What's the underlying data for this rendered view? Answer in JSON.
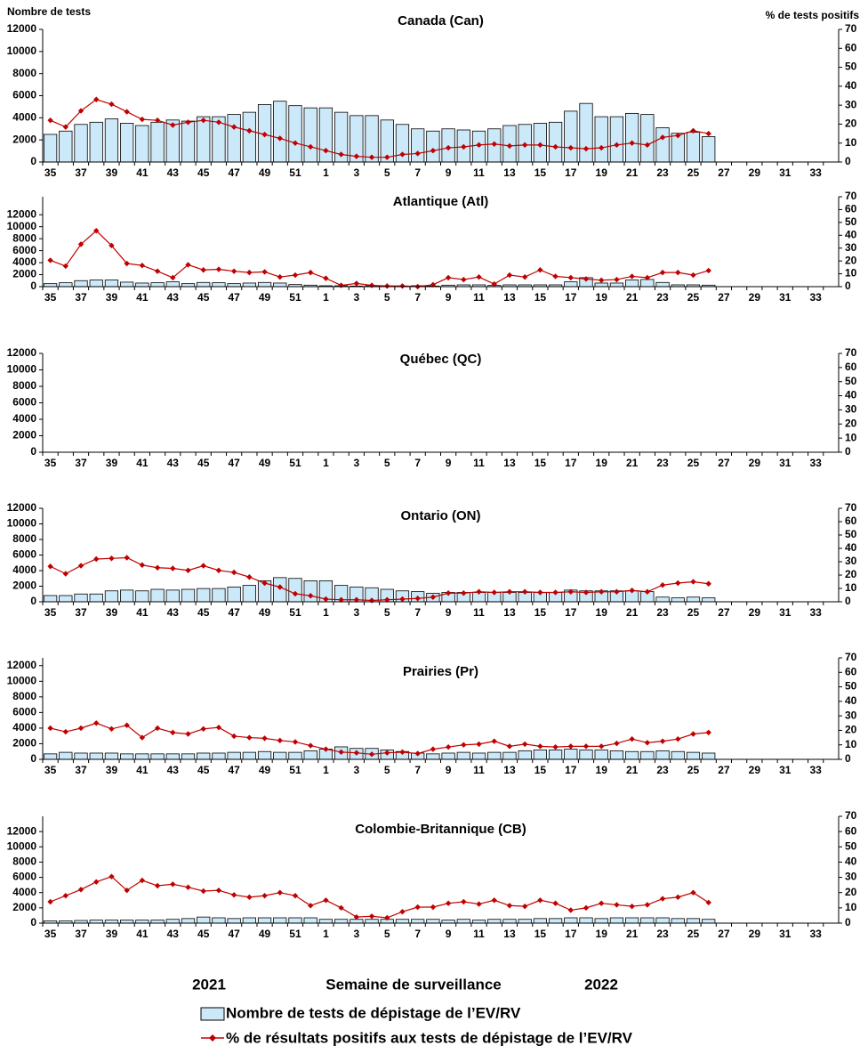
{
  "chart_data": [
    {
      "type": "bar-line",
      "title": "Canada (Can)",
      "y_label": "Nombre de tests",
      "y2_label": "% de tests positifs",
      "categories": [
        "35",
        null,
        "37",
        null,
        "39",
        null,
        "41",
        null,
        "43",
        null,
        "45",
        null,
        "47",
        null,
        "49",
        null,
        "51",
        null,
        "1",
        null,
        "3",
        null,
        "5",
        null,
        "7",
        null,
        "9",
        null,
        "11",
        null,
        "13",
        null,
        "15",
        null,
        "17",
        null,
        "19",
        null,
        "21",
        null,
        "23",
        null,
        "25",
        null,
        "27",
        null,
        "29",
        null,
        "31",
        null,
        "33",
        null
      ],
      "ylim": [
        0,
        12000
      ],
      "yticks": [
        0,
        2000,
        4000,
        6000,
        8000,
        10000,
        12000
      ],
      "y2lim": [
        0,
        70
      ],
      "y2ticks": [
        0,
        10,
        20,
        30,
        40,
        50,
        60,
        70
      ],
      "series": [
        {
          "name": "Nombre de tests de dépistage de l’EV/RV",
          "type": "bar",
          "color": "#cce9f9",
          "values": [
            2500,
            2800,
            3400,
            3600,
            3900,
            3500,
            3300,
            3600,
            3800,
            3700,
            4100,
            4100,
            4300,
            4500,
            5200,
            5500,
            5100,
            4900,
            4900,
            4500,
            4200,
            4200,
            3800,
            3400,
            3000,
            2800,
            3000,
            2900,
            2800,
            3000,
            3300,
            3400,
            3500,
            3600,
            4600,
            5300,
            4100,
            4100,
            4400,
            4300,
            3100,
            2600,
            2700,
            2300,
            null,
            null,
            null,
            null,
            null,
            null,
            null,
            null
          ]
        },
        {
          "name": "% de résultats positifs aux tests de dépistage de l’EV/RV",
          "type": "line",
          "axis": "y2",
          "color": "#c00000",
          "values": [
            22,
            18.5,
            27,
            33,
            30.5,
            26.5,
            22.5,
            22,
            19.5,
            21,
            22,
            21,
            18.5,
            16.5,
            14.5,
            12.5,
            10,
            8,
            6,
            4,
            3,
            2.5,
            2.5,
            4,
            4.5,
            6,
            7.5,
            8,
            9,
            9.5,
            8.5,
            9,
            9,
            8,
            7.5,
            7,
            7.5,
            9,
            10,
            9,
            13,
            14,
            16.5,
            15,
            null,
            null,
            null,
            null,
            null,
            null,
            null,
            null
          ]
        }
      ]
    },
    {
      "type": "bar-line",
      "title": "Atlantique (Atl)",
      "categories": [
        "35",
        null,
        "37",
        null,
        "39",
        null,
        "41",
        null,
        "43",
        null,
        "45",
        null,
        "47",
        null,
        "49",
        null,
        "51",
        null,
        "1",
        null,
        "3",
        null,
        "5",
        null,
        "7",
        null,
        "9",
        null,
        "11",
        null,
        "13",
        null,
        "15",
        null,
        "17",
        null,
        "19",
        null,
        "21",
        null,
        "23",
        null,
        "25",
        null,
        "27",
        null,
        "29",
        null,
        "31",
        null,
        "33",
        null
      ],
      "ylim": [
        0,
        15000
      ],
      "yticks": [
        0,
        2000,
        4000,
        6000,
        8000,
        10000,
        12000
      ],
      "y2lim": [
        0,
        70
      ],
      "y2ticks": [
        0,
        10,
        20,
        30,
        40,
        50,
        60,
        70
      ],
      "series": [
        {
          "type": "bar",
          "color": "#cce9f9",
          "values": [
            500,
            650,
            1000,
            1100,
            1100,
            750,
            600,
            650,
            800,
            500,
            700,
            650,
            500,
            600,
            700,
            600,
            350,
            250,
            150,
            150,
            100,
            150,
            100,
            100,
            150,
            100,
            250,
            300,
            300,
            200,
            300,
            300,
            300,
            300,
            800,
            1500,
            600,
            600,
            1100,
            1200,
            700,
            300,
            300,
            250,
            null,
            null,
            null,
            null,
            null,
            null,
            null,
            null
          ]
        },
        {
          "type": "line",
          "axis": "y2",
          "color": "#c00000",
          "values": [
            20.5,
            16,
            33,
            43.5,
            32,
            18,
            16.5,
            12,
            7,
            17,
            13,
            13.5,
            12,
            11,
            11.5,
            7.5,
            9,
            11,
            6.5,
            1,
            2.5,
            1,
            0.5,
            0.5,
            0,
            1.5,
            7,
            5.5,
            7.5,
            2,
            9,
            7.5,
            13,
            8,
            7,
            6,
            5,
            5.5,
            8,
            7,
            11,
            11,
            9,
            12.5,
            null,
            null,
            null,
            null,
            null,
            null,
            null,
            null
          ]
        }
      ]
    },
    {
      "type": "bar-line",
      "title": "Québec (QC)",
      "categories": [
        "35",
        null,
        "37",
        null,
        "39",
        null,
        "41",
        null,
        "43",
        null,
        "45",
        null,
        "47",
        null,
        "49",
        null,
        "51",
        null,
        "1",
        null,
        "3",
        null,
        "5",
        null,
        "7",
        null,
        "9",
        null,
        "11",
        null,
        "13",
        null,
        "15",
        null,
        "17",
        null,
        "19",
        null,
        "21",
        null,
        "23",
        null,
        "25",
        null,
        "27",
        null,
        "29",
        null,
        "31",
        null,
        "33",
        null
      ],
      "ylim": [
        0,
        12000
      ],
      "yticks": [
        0,
        2000,
        4000,
        6000,
        8000,
        10000,
        12000
      ],
      "y2lim": [
        0,
        70
      ],
      "y2ticks": [
        0,
        10,
        20,
        30,
        40,
        50,
        60,
        70
      ],
      "series": [
        {
          "type": "bar",
          "color": "#cce9f9",
          "values": [
            null,
            null,
            null,
            null,
            null,
            null,
            null,
            null,
            null,
            null,
            null,
            null,
            null,
            null,
            null,
            null,
            null,
            null,
            null,
            null,
            null,
            null,
            null,
            null,
            null,
            null,
            null,
            null,
            null,
            null,
            null,
            null,
            null,
            null,
            null,
            null,
            null,
            null,
            null,
            null,
            null,
            null,
            null,
            null,
            null,
            null,
            null,
            null,
            null,
            null,
            null,
            null
          ]
        },
        {
          "type": "line",
          "axis": "y2",
          "color": "#c00000",
          "values": [
            null,
            null,
            null,
            null,
            null,
            null,
            null,
            null,
            null,
            null,
            null,
            null,
            null,
            null,
            null,
            null,
            null,
            null,
            null,
            null,
            null,
            null,
            null,
            null,
            null,
            null,
            null,
            null,
            null,
            null,
            null,
            null,
            null,
            null,
            null,
            null,
            null,
            null,
            null,
            null,
            null,
            null,
            null,
            null,
            null,
            null,
            null,
            null,
            null,
            null,
            null,
            null
          ]
        }
      ]
    },
    {
      "type": "bar-line",
      "title": "Ontario (ON)",
      "categories": [
        "35",
        null,
        "37",
        null,
        "39",
        null,
        "41",
        null,
        "43",
        null,
        "45",
        null,
        "47",
        null,
        "49",
        null,
        "51",
        null,
        "1",
        null,
        "3",
        null,
        "5",
        null,
        "7",
        null,
        "9",
        null,
        "11",
        null,
        "13",
        null,
        "15",
        null,
        "17",
        null,
        "19",
        null,
        "21",
        null,
        "23",
        null,
        "25",
        null,
        "27",
        null,
        "29",
        null,
        "31",
        null,
        "33",
        null
      ],
      "ylim": [
        0,
        12000
      ],
      "yticks": [
        0,
        2000,
        4000,
        6000,
        8000,
        10000,
        12000
      ],
      "y2lim": [
        0,
        70
      ],
      "y2ticks": [
        0,
        10,
        20,
        30,
        40,
        50,
        60,
        70
      ],
      "series": [
        {
          "type": "bar",
          "color": "#cce9f9",
          "values": [
            800,
            800,
            1000,
            1000,
            1400,
            1500,
            1400,
            1600,
            1500,
            1600,
            1700,
            1700,
            1900,
            2100,
            2700,
            3100,
            3000,
            2700,
            2700,
            2100,
            1900,
            1800,
            1600,
            1400,
            1300,
            1100,
            1200,
            1200,
            1200,
            1200,
            1200,
            1200,
            1200,
            1200,
            1500,
            1400,
            1400,
            1400,
            1400,
            1300,
            600,
            500,
            600,
            500,
            null,
            null,
            null,
            null,
            null,
            null,
            null,
            null
          ]
        },
        {
          "type": "line",
          "axis": "y2",
          "color": "#c00000",
          "values": [
            26.5,
            21,
            27,
            32,
            32.5,
            33,
            27.5,
            25.5,
            25,
            23.5,
            27,
            23.5,
            22,
            18.5,
            14,
            11,
            6,
            4.5,
            2,
            1.5,
            1.5,
            1,
            1.5,
            2,
            2.5,
            3.5,
            6.5,
            6.5,
            7.5,
            7,
            7.5,
            7.5,
            7,
            7,
            7.5,
            7,
            7.5,
            7.5,
            8.5,
            7.5,
            12.5,
            14,
            15,
            13.5,
            null,
            null,
            null,
            null,
            null,
            null,
            null,
            null
          ]
        }
      ]
    },
    {
      "type": "bar-line",
      "title": "Prairies (Pr)",
      "categories": [
        "35",
        null,
        "37",
        null,
        "39",
        null,
        "41",
        null,
        "43",
        null,
        "45",
        null,
        "47",
        null,
        "49",
        null,
        "51",
        null,
        "1",
        null,
        "3",
        null,
        "5",
        null,
        "7",
        null,
        "9",
        null,
        "11",
        null,
        "13",
        null,
        "15",
        null,
        "17",
        null,
        "19",
        null,
        "21",
        null,
        "23",
        null,
        "25",
        null,
        "27",
        null,
        "29",
        null,
        "31",
        null,
        "33",
        null
      ],
      "ylim": [
        0,
        13000
      ],
      "yticks": [
        0,
        2000,
        4000,
        6000,
        8000,
        10000,
        12000
      ],
      "y2lim": [
        0,
        70
      ],
      "y2ticks": [
        0,
        10,
        20,
        30,
        40,
        50,
        60,
        70
      ],
      "series": [
        {
          "type": "bar",
          "color": "#cce9f9",
          "values": [
            700,
            900,
            800,
            800,
            800,
            700,
            700,
            700,
            700,
            700,
            800,
            800,
            900,
            900,
            1000,
            900,
            900,
            1100,
            1300,
            1600,
            1400,
            1400,
            1200,
            1000,
            800,
            700,
            800,
            900,
            800,
            900,
            900,
            1100,
            1200,
            1200,
            1300,
            1200,
            1200,
            1100,
            1000,
            1000,
            1100,
            1000,
            900,
            800,
            null,
            null,
            null,
            null,
            null,
            null,
            null,
            null
          ]
        },
        {
          "type": "line",
          "axis": "y2",
          "color": "#c00000",
          "values": [
            21.5,
            19,
            21.5,
            25,
            21,
            23.5,
            15,
            21.5,
            18.5,
            17.5,
            21,
            22,
            16,
            15,
            14.5,
            13,
            12,
            9.5,
            7,
            5,
            4.5,
            3.5,
            4.5,
            5,
            4,
            7,
            8.5,
            10,
            10.5,
            12.5,
            9,
            10.5,
            9,
            8.5,
            9,
            9,
            9,
            11,
            14,
            11.5,
            12.5,
            14,
            17.5,
            18.5,
            null,
            null,
            null,
            null,
            null,
            null,
            null,
            null
          ]
        }
      ]
    },
    {
      "type": "bar-line",
      "title": "Colombie-Britannique (CB)",
      "x_label": "Semaine de surveillance",
      "annotations": [
        "2021",
        "2022"
      ],
      "categories": [
        "35",
        null,
        "37",
        null,
        "39",
        null,
        "41",
        null,
        "43",
        null,
        "45",
        null,
        "47",
        null,
        "49",
        null,
        "51",
        null,
        "1",
        null,
        "3",
        null,
        "5",
        null,
        "7",
        null,
        "9",
        null,
        "11",
        null,
        "13",
        null,
        "15",
        null,
        "17",
        null,
        "19",
        null,
        "21",
        null,
        "23",
        null,
        "25",
        null,
        "27",
        null,
        "29",
        null,
        "31",
        null,
        "33",
        null
      ],
      "ylim": [
        0,
        14000
      ],
      "yticks": [
        0,
        2000,
        4000,
        6000,
        8000,
        10000,
        12000
      ],
      "y2lim": [
        0,
        70
      ],
      "y2ticks": [
        0,
        10,
        20,
        30,
        40,
        50,
        60,
        70
      ],
      "series": [
        {
          "type": "bar",
          "color": "#cce9f9",
          "values": [
            300,
            300,
            350,
            400,
            400,
            400,
            400,
            400,
            500,
            600,
            800,
            700,
            600,
            700,
            700,
            700,
            700,
            700,
            500,
            500,
            500,
            500,
            500,
            500,
            500,
            500,
            400,
            500,
            400,
            500,
            500,
            500,
            600,
            600,
            700,
            700,
            600,
            700,
            700,
            700,
            700,
            600,
            600,
            500,
            null,
            null,
            null,
            null,
            null,
            null,
            null,
            null
          ]
        },
        {
          "type": "line",
          "axis": "y2",
          "color": "#c00000",
          "values": [
            14,
            18,
            22,
            27,
            30.5,
            21.5,
            28,
            24.5,
            25.5,
            23.5,
            21,
            21.5,
            18.5,
            17,
            18,
            20,
            18,
            11.5,
            15,
            10,
            4,
            4.5,
            3.5,
            7.5,
            10.5,
            10.5,
            13,
            14,
            12.5,
            15,
            11.5,
            11,
            15,
            13,
            8.5,
            10,
            13,
            12,
            11,
            12,
            16,
            17,
            20,
            13.5,
            null,
            null,
            null,
            null,
            null,
            null,
            null,
            null
          ]
        }
      ]
    }
  ]
}
